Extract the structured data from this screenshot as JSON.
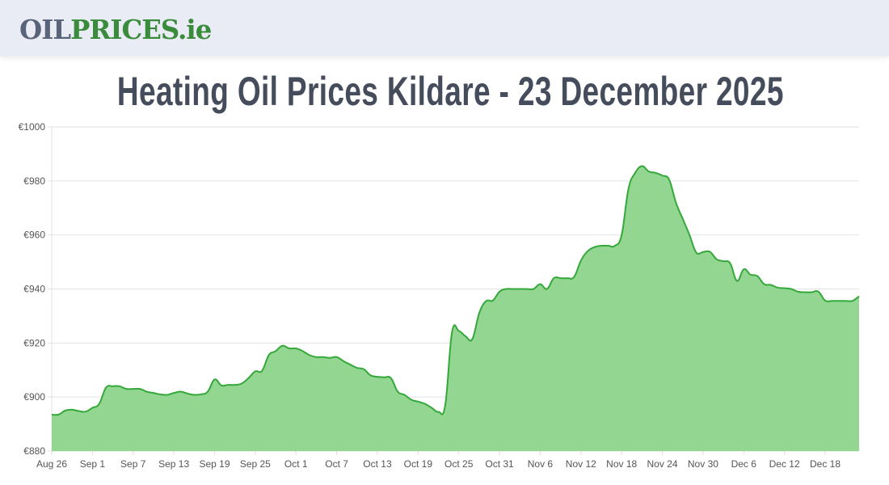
{
  "header": {
    "logo_part1": "OIL",
    "logo_part2": "PRICES.ie"
  },
  "title": "Heating Oil Prices Kildare - 23 December 2025",
  "chart_data": {
    "type": "area",
    "title": "Heating Oil Prices Kildare - 23 December 2025",
    "xlabel": "",
    "ylabel": "",
    "ylim": [
      880,
      1000
    ],
    "y_ticks": [
      "€880",
      "€900",
      "€920",
      "€940",
      "€960",
      "€980",
      "€1000"
    ],
    "y_tick_values": [
      880,
      900,
      920,
      940,
      960,
      980,
      1000
    ],
    "x_tick_labels": [
      "Aug 26",
      "Sep 1",
      "Sep 7",
      "Sep 13",
      "Sep 19",
      "Sep 25",
      "Oct 1",
      "Oct 7",
      "Oct 13",
      "Oct 19",
      "Oct 25",
      "Oct 31",
      "Nov 6",
      "Nov 12",
      "Nov 18",
      "Nov 24",
      "Nov 30",
      "Dec 6",
      "Dec 12",
      "Dec 18"
    ],
    "x_tick_every_days": 6,
    "x_range": [
      "Aug 26",
      "Dec 23"
    ],
    "grid": true,
    "line_color": "#35a83a",
    "fill_color": "#92d692",
    "series": [
      {
        "name": "Price",
        "values": [
          893.5,
          893.5,
          895,
          895.3,
          894.8,
          894.6,
          896,
          897.5,
          903.5,
          904,
          904,
          903,
          903,
          903,
          902,
          901.5,
          901,
          900.8,
          901.5,
          902,
          901.3,
          900.8,
          901,
          902,
          906.5,
          904.3,
          904.5,
          904.5,
          905,
          907,
          909.5,
          909.7,
          915.5,
          917,
          919,
          918,
          918,
          917,
          915.5,
          914.8,
          914.8,
          914.5,
          914.8,
          913.3,
          912,
          910.8,
          910.3,
          908,
          907.5,
          907.3,
          907,
          902,
          900.8,
          899,
          898.3,
          897.5,
          896,
          894.5,
          897,
          924,
          924.5,
          922.5,
          921.5,
          931,
          935.5,
          935.7,
          939,
          940,
          940,
          940,
          940,
          940,
          941.8,
          940,
          944,
          944,
          944,
          944.5,
          950.5,
          954,
          955.5,
          956,
          956,
          956,
          960,
          977,
          983,
          985.5,
          983.5,
          983,
          982,
          980.5,
          972,
          966,
          960,
          953.5,
          953.7,
          953.8,
          951,
          950.3,
          949.5,
          943,
          947.3,
          945.3,
          944.8,
          941.8,
          941.5,
          940.5,
          940.3,
          940,
          939,
          938.8,
          938.8,
          939,
          935.7,
          935.6,
          935.6,
          935.6,
          935.6,
          937.3
        ]
      }
    ]
  }
}
